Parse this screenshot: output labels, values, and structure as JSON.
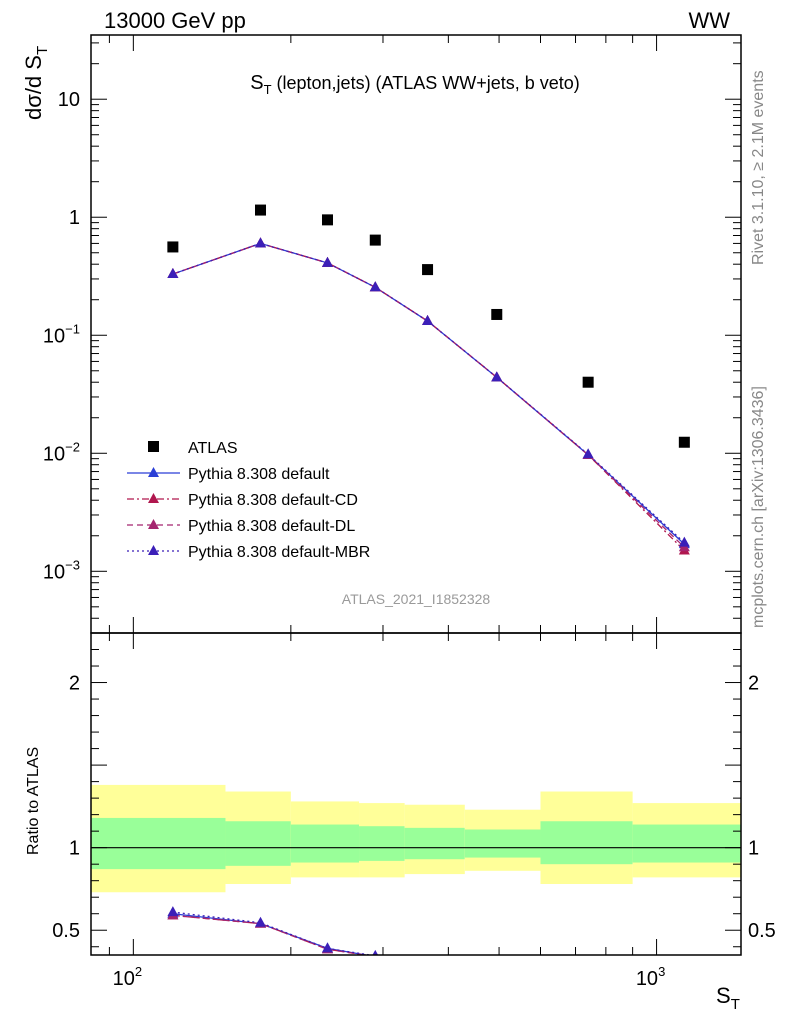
{
  "header": {
    "energy_label": "13000 GeV pp",
    "process_label": "WW"
  },
  "side_labels": {
    "rivet": "Rivet 3.1.10, ≥ 2.1M events",
    "mcplots": "mcplots.cern.ch [arXiv:1306.3436]"
  },
  "chart_data": [
    {
      "type": "scatter",
      "title_main": "S",
      "title_sub": "T",
      "title_rest": " (lepton,jets) (ATLAS WW+jets, b veto)",
      "ylabel_main": "dσ/d S",
      "ylabel_sub": "T",
      "yscale": "log",
      "xscale": "log",
      "xlim": [
        83,
        1450
      ],
      "ylim": [
        0.0003,
        35
      ],
      "analysis_tag": "ATLAS_2021_I1852328",
      "x": [
        119,
        175,
        235,
        290,
        365,
        495,
        740,
        1130
      ],
      "legend_placement": "lower-left",
      "series": [
        {
          "name": "ATLAS",
          "values": [
            0.56,
            1.15,
            0.95,
            0.64,
            0.36,
            0.15,
            0.04,
            0.0124
          ],
          "color": "#000000",
          "marker": "square"
        },
        {
          "name": "Pythia 8.308 default",
          "values": [
            0.33,
            0.6,
            0.41,
            0.255,
            0.132,
            0.044,
            0.0097,
            0.0017
          ],
          "color": "#2b3fd6",
          "marker": "triangle",
          "dash": "solid"
        },
        {
          "name": "Pythia 8.308 default-CD",
          "values": [
            0.33,
            0.6,
            0.41,
            0.255,
            0.132,
            0.044,
            0.0097,
            0.0015
          ],
          "color": "#b0174e",
          "marker": "triangle",
          "dash": "dashdot"
        },
        {
          "name": "Pythia 8.308 default-DL",
          "values": [
            0.33,
            0.6,
            0.41,
            0.255,
            0.132,
            0.044,
            0.0097,
            0.0016
          ],
          "color": "#a5256f",
          "marker": "triangle",
          "dash": "dashed"
        },
        {
          "name": "Pythia 8.308 default-MBR",
          "values": [
            0.33,
            0.6,
            0.41,
            0.255,
            0.132,
            0.044,
            0.0098,
            0.00175
          ],
          "color": "#3b1fb8",
          "marker": "triangle",
          "dash": "dotted"
        }
      ],
      "y_ticks": [
        {
          "value": 10,
          "base": "10",
          "exp": ""
        },
        {
          "value": 1,
          "base": "1",
          "exp": ""
        },
        {
          "value": 0.1,
          "base": "10",
          "exp": "−1"
        },
        {
          "value": 0.01,
          "base": "10",
          "exp": "−2"
        },
        {
          "value": 0.001,
          "base": "10",
          "exp": "−3"
        }
      ]
    },
    {
      "type": "line",
      "ylabel": "Ratio to ATLAS",
      "xlabel_main": "S",
      "xlabel_sub": "T",
      "xscale": "log",
      "xlim": [
        83,
        1450
      ],
      "ylim": [
        0.35,
        2.3
      ],
      "y_ticks": [
        {
          "value": 0.5,
          "label": "0.5"
        },
        {
          "value": 1,
          "label": "1"
        },
        {
          "value": 2,
          "label": "2"
        }
      ],
      "x_ticks": [
        {
          "value": 100,
          "base": "10",
          "exp": "2"
        },
        {
          "value": 1000,
          "base": "10",
          "exp": "3"
        }
      ],
      "band_edges": [
        83,
        150,
        200,
        270,
        330,
        430,
        600,
        900,
        1450
      ],
      "band_green": [
        [
          0.87,
          1.18
        ],
        [
          0.89,
          1.16
        ],
        [
          0.91,
          1.14
        ],
        [
          0.92,
          1.13
        ],
        [
          0.93,
          1.12
        ],
        [
          0.94,
          1.11
        ],
        [
          0.9,
          1.16
        ],
        [
          0.91,
          1.14
        ]
      ],
      "band_yellow": [
        [
          0.73,
          1.38
        ],
        [
          0.78,
          1.34
        ],
        [
          0.82,
          1.28
        ],
        [
          0.82,
          1.27
        ],
        [
          0.84,
          1.26
        ],
        [
          0.86,
          1.23
        ],
        [
          0.78,
          1.34
        ],
        [
          0.82,
          1.27
        ]
      ],
      "x": [
        119,
        175,
        235,
        290
      ],
      "series": [
        {
          "name": "Pythia 8.308 default",
          "values": [
            0.6,
            0.54,
            0.39,
            0.34
          ],
          "color": "#2b3fd6",
          "dash": "solid"
        },
        {
          "name": "Pythia 8.308 default-CD",
          "values": [
            0.59,
            0.54,
            0.385,
            0.34
          ],
          "color": "#b0174e",
          "dash": "dashdot"
        },
        {
          "name": "Pythia 8.308 default-DL",
          "values": [
            0.59,
            0.54,
            0.385,
            0.34
          ],
          "color": "#a5256f",
          "dash": "dashed"
        },
        {
          "name": "Pythia 8.308 default-MBR",
          "values": [
            0.61,
            0.545,
            0.39,
            0.345
          ],
          "color": "#3b1fb8",
          "dash": "dotted"
        }
      ]
    }
  ]
}
